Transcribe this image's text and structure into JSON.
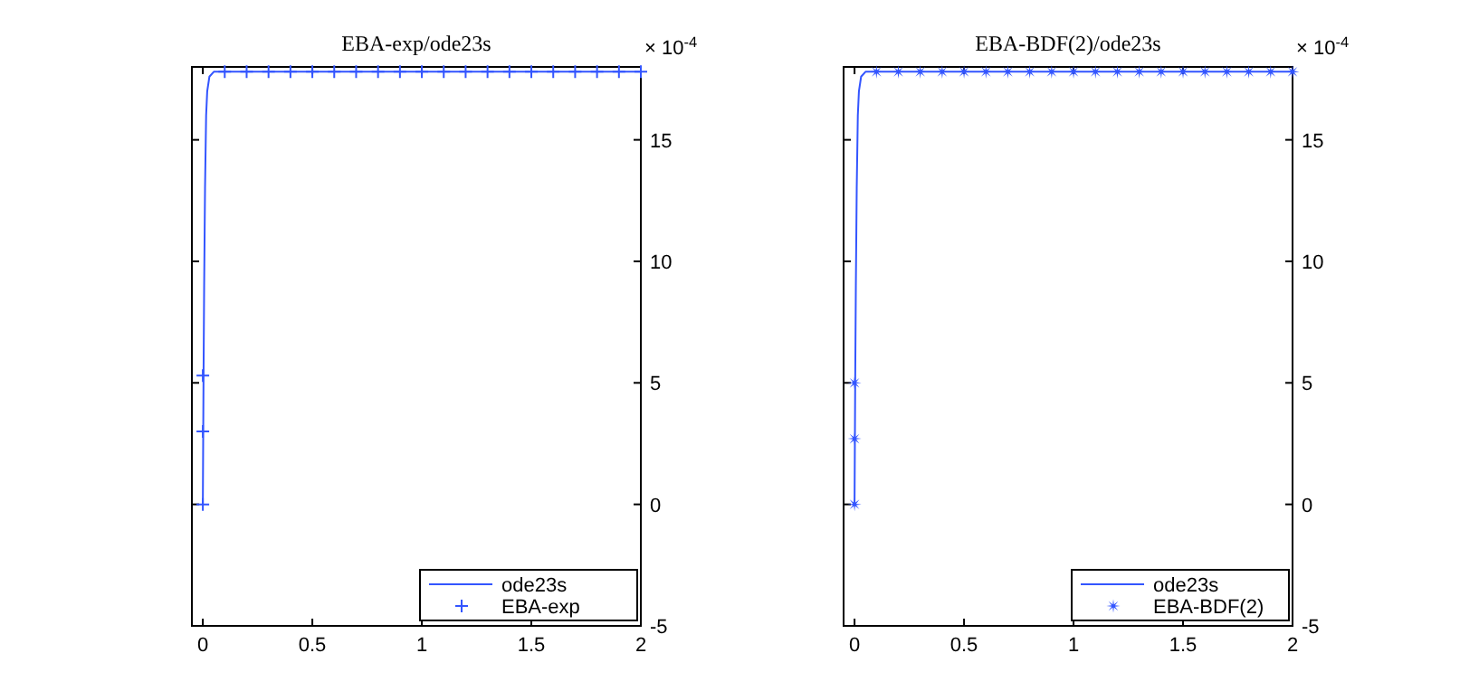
{
  "chart_data": [
    {
      "type": "scatter",
      "title": "EBA-exp/ode23s",
      "annotations": [
        "× 10$^{-4}$"
      ],
      "xlim": [
        -0.05,
        2
      ],
      "xticks": [
        0,
        0.5,
        1,
        1.5,
        2
      ],
      "ylim": [
        -5,
        18
      ],
      "yticks": [
        -5,
        0,
        5,
        10,
        15
      ],
      "grid": false,
      "legend": "bottom right",
      "series": [
        {
          "name": "ode23s",
          "type": "line",
          "color": "#3355ff",
          "marker": "none",
          "x": [
            0,
            0.003,
            0.006,
            0.01,
            0.015,
            0.02,
            0.03,
            0.05,
            2
          ],
          "values": [
            0,
            5,
            9,
            13,
            16,
            17,
            17.6,
            17.8,
            17.8
          ]
        },
        {
          "name": "EBA-exp",
          "color": "#3355ff",
          "marker": "cross",
          "x": [
            0,
            0,
            0,
            0.1,
            0.2,
            0.3,
            0.4,
            0.5,
            0.6,
            0.7,
            0.8,
            0.9,
            1,
            1.1,
            1.2,
            1.3,
            1.4,
            1.5,
            1.6,
            1.7,
            1.8,
            1.9,
            2
          ],
          "values": [
            0,
            3,
            5.3,
            17.8,
            17.8,
            17.8,
            17.8,
            17.8,
            17.8,
            17.8,
            17.8,
            17.8,
            17.8,
            17.8,
            17.8,
            17.8,
            17.8,
            17.8,
            17.8,
            17.8,
            17.8,
            17.8,
            17.8
          ]
        }
      ]
    },
    {
      "type": "scatter",
      "title": "EBA-BDF(2)/ode23s",
      "annotations": [
        "× 10$^{-4}$"
      ],
      "xlim": [
        -0.05,
        2
      ],
      "xticks": [
        0,
        0.5,
        1,
        1.5,
        2
      ],
      "ylim": [
        -5,
        18
      ],
      "yticks": [
        -5,
        0,
        5,
        10,
        15
      ],
      "grid": false,
      "legend": "bottom right",
      "series": [
        {
          "name": "ode23s",
          "type": "line",
          "color": "#3355ff",
          "marker": "none",
          "x": [
            0,
            0.003,
            0.006,
            0.01,
            0.015,
            0.02,
            0.03,
            0.05,
            2
          ],
          "values": [
            0,
            5,
            9,
            13,
            16,
            17,
            17.6,
            17.8,
            17.8
          ]
        },
        {
          "name": "EBA-BDF(2)",
          "color": "#3355ff",
          "marker": "star",
          "x": [
            0,
            0,
            0,
            0.1,
            0.2,
            0.3,
            0.4,
            0.5,
            0.6,
            0.7,
            0.8,
            0.9,
            1,
            1.1,
            1.2,
            1.3,
            1.4,
            1.5,
            1.6,
            1.7,
            1.8,
            1.9,
            2
          ],
          "values": [
            0,
            2.7,
            5,
            17.8,
            17.8,
            17.8,
            17.8,
            17.8,
            17.8,
            17.8,
            17.8,
            17.8,
            17.8,
            17.8,
            17.8,
            17.8,
            17.8,
            17.8,
            17.8,
            17.8,
            17.8,
            17.8,
            17.8
          ]
        }
      ]
    }
  ]
}
